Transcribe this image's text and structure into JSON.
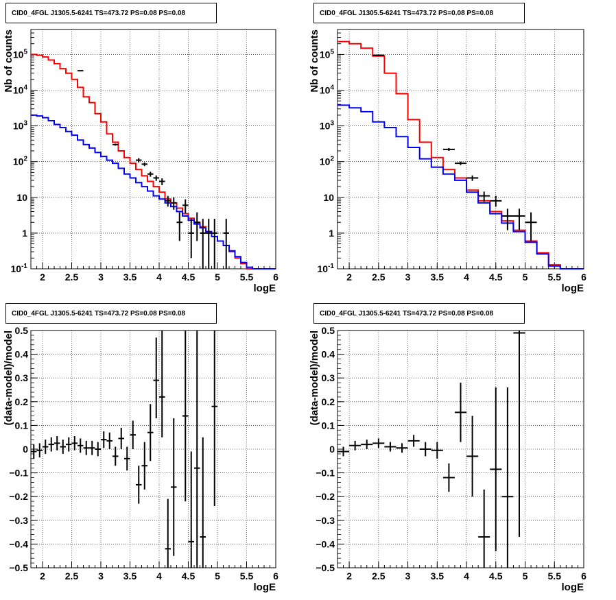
{
  "chart_data": [
    {
      "type": "line",
      "title": "CID0_4FGL J1305.5-6241 TS=473.72 PS=0.08 PS=0.08",
      "xlabel": "logE",
      "ylabel": "Nb of counts",
      "yscale": "log",
      "xlim": [
        1.8,
        6.0
      ],
      "ylim": [
        0.1,
        500000
      ],
      "xticks": [
        "2",
        "2.5",
        "3",
        "3.5",
        "4",
        "4.5",
        "5",
        "5.5",
        "6"
      ],
      "yticks": [
        "10^-1",
        "1",
        "10",
        "10^2",
        "10^3",
        "10^4",
        "10^5"
      ],
      "grid": true,
      "bin_edges": [
        1.8,
        1.9,
        2.0,
        2.1,
        2.2,
        2.3,
        2.4,
        2.5,
        2.6,
        2.7,
        2.8,
        2.9,
        3.0,
        3.1,
        3.2,
        3.3,
        3.4,
        3.5,
        3.6,
        3.7,
        3.8,
        3.9,
        4.0,
        4.1,
        4.2,
        4.3,
        4.4,
        4.5,
        4.6,
        4.7,
        4.8,
        4.9,
        5.0,
        5.1,
        5.2,
        5.3,
        5.4,
        5.5,
        5.6,
        5.7,
        5.8,
        5.9,
        6.0
      ],
      "series": [
        {
          "color": "#ff0000",
          "style": "step",
          "values": [
            100000,
            95000,
            85000,
            70000,
            55000,
            40000,
            30000,
            20000,
            12000,
            6500,
            4500,
            2200,
            1300,
            600,
            350,
            200,
            130,
            90,
            60,
            40,
            28,
            20,
            14,
            9,
            7,
            5,
            3.5,
            2.6,
            2,
            1.5,
            1.1,
            0.8,
            0.6,
            0.45,
            0.3,
            0.2,
            0.14,
            0.1,
            0.1,
            0.1,
            0.1,
            0.1
          ]
        },
        {
          "color": "#0000ff",
          "style": "step",
          "values": [
            2000,
            1900,
            1700,
            1400,
            1100,
            900,
            700,
            550,
            400,
            300,
            240,
            180,
            140,
            110,
            90,
            65,
            45,
            35,
            26,
            20,
            15,
            11,
            9,
            7,
            5.5,
            4,
            3,
            2.3,
            1.8,
            1.4,
            1.1,
            0.8,
            0.6,
            0.45,
            0.32,
            0.22,
            0.15,
            0.11,
            0.1,
            0.1,
            0.1,
            0.1
          ]
        }
      ],
      "points": [
        {
          "x": 2.65,
          "y": 35000,
          "xerr": 0.05,
          "ylo": 34000,
          "yhi": 36000
        },
        {
          "x": 3.25,
          "y": 300,
          "xerr": 0.05,
          "ylo": 280,
          "yhi": 320
        },
        {
          "x": 3.65,
          "y": 110,
          "xerr": 0.05,
          "ylo": 95,
          "yhi": 125
        },
        {
          "x": 3.75,
          "y": 85,
          "xerr": 0.05,
          "ylo": 75,
          "yhi": 95
        },
        {
          "x": 3.85,
          "y": 45,
          "xerr": 0.05,
          "ylo": 38,
          "yhi": 52
        },
        {
          "x": 3.95,
          "y": 35,
          "xerr": 0.05,
          "ylo": 29,
          "yhi": 41
        },
        {
          "x": 4.05,
          "y": 28,
          "xerr": 0.05,
          "ylo": 22,
          "yhi": 34
        },
        {
          "x": 4.15,
          "y": 8,
          "xerr": 0.05,
          "ylo": 5.5,
          "yhi": 11
        },
        {
          "x": 4.25,
          "y": 7,
          "xerr": 0.05,
          "ylo": 4.5,
          "yhi": 10
        },
        {
          "x": 4.35,
          "y": 2,
          "xerr": 0.05,
          "ylo": 0.6,
          "yhi": 3.8
        },
        {
          "x": 4.45,
          "y": 6,
          "xerr": 0.05,
          "ylo": 3.6,
          "yhi": 8.8
        },
        {
          "x": 4.55,
          "y": 1,
          "xerr": 0.05,
          "ylo": 0.2,
          "yhi": 2.5
        },
        {
          "x": 4.65,
          "y": 2,
          "xerr": 0.05,
          "ylo": 0.6,
          "yhi": 3.8
        },
        {
          "x": 4.75,
          "y": 1,
          "xerr": 0.05,
          "ylo": 0.1,
          "yhi": 2.5
        },
        {
          "x": 4.85,
          "y": 1,
          "xerr": 0.05,
          "ylo": 0.1,
          "yhi": 2.5
        },
        {
          "x": 4.95,
          "y": 1,
          "xerr": 0.05,
          "ylo": 0.1,
          "yhi": 2.5
        },
        {
          "x": 5.15,
          "y": 1,
          "xerr": 0.05,
          "ylo": 0.1,
          "yhi": 2.5
        }
      ]
    },
    {
      "type": "line",
      "title": "CID0_4FGL J1305.5-6241 TS=473.72 PS=0.08 PS=0.08",
      "xlabel": "logE",
      "ylabel": "Nb of counts",
      "yscale": "log",
      "xlim": [
        1.8,
        6.0
      ],
      "ylim": [
        0.1,
        500000
      ],
      "xticks": [
        "2",
        "2.5",
        "3",
        "3.5",
        "4",
        "4.5",
        "5",
        "5.5",
        "6"
      ],
      "yticks": [
        "10^-1",
        "1",
        "10",
        "10^2",
        "10^3",
        "10^4",
        "10^5"
      ],
      "grid": true,
      "bin_edges": [
        1.8,
        2.0,
        2.2,
        2.4,
        2.6,
        2.8,
        3.0,
        3.2,
        3.4,
        3.6,
        3.8,
        4.0,
        4.2,
        4.4,
        4.6,
        4.8,
        5.0,
        5.2,
        5.4,
        5.6,
        5.8,
        6.0
      ],
      "series": [
        {
          "color": "#ff0000",
          "style": "step",
          "values": [
            230000,
            200000,
            150000,
            90000,
            30000,
            8000,
            1500,
            350,
            130,
            60,
            35,
            16,
            8,
            4,
            2.2,
            1.2,
            0.6,
            0.28,
            0.13,
            0.1,
            0.1
          ]
        },
        {
          "color": "#0000ff",
          "style": "step",
          "values": [
            3800,
            3200,
            2500,
            1300,
            900,
            500,
            250,
            120,
            70,
            45,
            30,
            14,
            7,
            3.5,
            1.9,
            1.1,
            0.55,
            0.26,
            0.12,
            0.1,
            0.1
          ]
        }
      ],
      "points": [
        {
          "x": 2.5,
          "y": 95000,
          "xerr": 0.1,
          "ylo": 92000,
          "yhi": 98000
        },
        {
          "x": 3.7,
          "y": 220,
          "xerr": 0.1,
          "ylo": 200,
          "yhi": 240
        },
        {
          "x": 3.9,
          "y": 90,
          "xerr": 0.1,
          "ylo": 80,
          "yhi": 100
        },
        {
          "x": 4.1,
          "y": 35,
          "xerr": 0.1,
          "ylo": 29,
          "yhi": 41
        },
        {
          "x": 4.3,
          "y": 11,
          "xerr": 0.1,
          "ylo": 7.5,
          "yhi": 14.5
        },
        {
          "x": 4.5,
          "y": 8,
          "xerr": 0.1,
          "ylo": 5.5,
          "yhi": 11
        },
        {
          "x": 4.7,
          "y": 3,
          "xerr": 0.1,
          "ylo": 1.2,
          "yhi": 4.8
        },
        {
          "x": 4.9,
          "y": 3,
          "xerr": 0.1,
          "ylo": 1.2,
          "yhi": 4.8
        },
        {
          "x": 5.1,
          "y": 2,
          "xerr": 0.1,
          "ylo": 0.6,
          "yhi": 3.8
        }
      ]
    },
    {
      "type": "scatter",
      "title": "CID0_4FGL J1305.5-6241 TS=473.72 PS=0.08 PS=0.08",
      "xlabel": "logE",
      "ylabel": "(data-model)/model",
      "yscale": "linear",
      "xlim": [
        1.8,
        6.0
      ],
      "ylim": [
        -0.5,
        0.5
      ],
      "xticks": [
        "2",
        "2.5",
        "3",
        "3.5",
        "4",
        "4.5",
        "5",
        "5.5",
        "6"
      ],
      "yticks": [
        "-0.5",
        "-0.4",
        "-0.3",
        "-0.2",
        "-0.1",
        "0",
        "0.1",
        "0.2",
        "0.3",
        "0.4",
        "0.5"
      ],
      "grid": true,
      "points": [
        {
          "x": 1.85,
          "y": -0.01,
          "xerr": 0.05,
          "ylo": -0.04,
          "yhi": 0.02
        },
        {
          "x": 1.95,
          "y": -0.005,
          "xerr": 0.05,
          "ylo": -0.035,
          "yhi": 0.025
        },
        {
          "x": 2.05,
          "y": 0.01,
          "xerr": 0.05,
          "ylo": -0.02,
          "yhi": 0.04
        },
        {
          "x": 2.15,
          "y": 0.02,
          "xerr": 0.05,
          "ylo": -0.01,
          "yhi": 0.05
        },
        {
          "x": 2.25,
          "y": 0.025,
          "xerr": 0.05,
          "ylo": -0.005,
          "yhi": 0.055
        },
        {
          "x": 2.35,
          "y": 0.01,
          "xerr": 0.05,
          "ylo": -0.02,
          "yhi": 0.04
        },
        {
          "x": 2.45,
          "y": 0.02,
          "xerr": 0.05,
          "ylo": -0.01,
          "yhi": 0.05
        },
        {
          "x": 2.55,
          "y": 0.025,
          "xerr": 0.05,
          "ylo": -0.005,
          "yhi": 0.055
        },
        {
          "x": 2.65,
          "y": 0.015,
          "xerr": 0.05,
          "ylo": -0.015,
          "yhi": 0.045
        },
        {
          "x": 2.75,
          "y": 0.005,
          "xerr": 0.05,
          "ylo": -0.025,
          "yhi": 0.035
        },
        {
          "x": 2.85,
          "y": 0.005,
          "xerr": 0.05,
          "ylo": -0.025,
          "yhi": 0.035
        },
        {
          "x": 2.95,
          "y": 0.0,
          "xerr": 0.05,
          "ylo": -0.03,
          "yhi": 0.03
        },
        {
          "x": 3.05,
          "y": 0.04,
          "xerr": 0.05,
          "ylo": 0.005,
          "yhi": 0.075
        },
        {
          "x": 3.15,
          "y": 0.035,
          "xerr": 0.05,
          "ylo": 0.0,
          "yhi": 0.07
        },
        {
          "x": 3.25,
          "y": -0.03,
          "xerr": 0.05,
          "ylo": -0.07,
          "yhi": 0.01
        },
        {
          "x": 3.35,
          "y": 0.045,
          "xerr": 0.05,
          "ylo": 0.0,
          "yhi": 0.09
        },
        {
          "x": 3.45,
          "y": -0.04,
          "xerr": 0.05,
          "ylo": -0.09,
          "yhi": 0.01
        },
        {
          "x": 3.55,
          "y": 0.06,
          "xerr": 0.05,
          "ylo": 0.0,
          "yhi": 0.12
        },
        {
          "x": 3.65,
          "y": -0.15,
          "xerr": 0.05,
          "ylo": -0.23,
          "yhi": -0.07
        },
        {
          "x": 3.75,
          "y": -0.07,
          "xerr": 0.05,
          "ylo": -0.17,
          "yhi": 0.03
        },
        {
          "x": 3.85,
          "y": 0.07,
          "xerr": 0.05,
          "ylo": -0.05,
          "yhi": 0.19
        },
        {
          "x": 3.95,
          "y": 0.29,
          "xerr": 0.05,
          "ylo": 0.13,
          "yhi": 0.47
        },
        {
          "x": 4.05,
          "y": 0.22,
          "xerr": 0.05,
          "ylo": 0.05,
          "yhi": 0.5
        },
        {
          "x": 4.15,
          "y": -0.42,
          "xerr": 0.05,
          "ylo": -0.5,
          "yhi": -0.21
        },
        {
          "x": 4.25,
          "y": -0.16,
          "xerr": 0.05,
          "ylo": -0.45,
          "yhi": 0.13
        },
        {
          "x": 4.45,
          "y": 0.14,
          "xerr": 0.05,
          "ylo": -0.22,
          "yhi": 0.5
        },
        {
          "x": 4.55,
          "y": -0.39,
          "xerr": 0.05,
          "ylo": -0.5,
          "yhi": -0.01
        },
        {
          "x": 4.65,
          "y": -0.08,
          "xerr": 0.05,
          "ylo": -0.5,
          "yhi": 0.5
        },
        {
          "x": 4.75,
          "y": -0.37,
          "xerr": 0.05,
          "ylo": -0.5,
          "yhi": 0.05
        },
        {
          "x": 4.95,
          "y": 0.18,
          "xerr": 0.05,
          "ylo": -0.24,
          "yhi": 0.5
        }
      ]
    },
    {
      "type": "scatter",
      "title": "CID0_4FGL J1305.5-6241 TS=473.72 PS=0.08 PS=0.08",
      "xlabel": "logE",
      "ylabel": "(data-model)/model",
      "yscale": "linear",
      "xlim": [
        1.8,
        6.0
      ],
      "ylim": [
        -0.5,
        0.5
      ],
      "xticks": [
        "2",
        "2.5",
        "3",
        "3.5",
        "4",
        "4.5",
        "5",
        "5.5",
        "6"
      ],
      "yticks": [
        "-0.5",
        "-0.4",
        "-0.3",
        "-0.2",
        "-0.1",
        "0",
        "0.1",
        "0.2",
        "0.3",
        "0.4",
        "0.5"
      ],
      "grid": true,
      "points": [
        {
          "x": 1.9,
          "y": -0.01,
          "xerr": 0.1,
          "ylo": -0.03,
          "yhi": 0.01
        },
        {
          "x": 2.1,
          "y": 0.015,
          "xerr": 0.1,
          "ylo": -0.005,
          "yhi": 0.035
        },
        {
          "x": 2.3,
          "y": 0.02,
          "xerr": 0.1,
          "ylo": 0.0,
          "yhi": 0.04
        },
        {
          "x": 2.5,
          "y": 0.025,
          "xerr": 0.1,
          "ylo": 0.005,
          "yhi": 0.045
        },
        {
          "x": 2.7,
          "y": 0.01,
          "xerr": 0.1,
          "ylo": -0.01,
          "yhi": 0.03
        },
        {
          "x": 2.9,
          "y": 0.005,
          "xerr": 0.1,
          "ylo": -0.015,
          "yhi": 0.025
        },
        {
          "x": 3.1,
          "y": 0.035,
          "xerr": 0.1,
          "ylo": 0.01,
          "yhi": 0.06
        },
        {
          "x": 3.3,
          "y": 0.0,
          "xerr": 0.1,
          "ylo": -0.03,
          "yhi": 0.03
        },
        {
          "x": 3.5,
          "y": -0.005,
          "xerr": 0.1,
          "ylo": -0.04,
          "yhi": 0.03
        },
        {
          "x": 3.7,
          "y": -0.12,
          "xerr": 0.1,
          "ylo": -0.18,
          "yhi": -0.06
        },
        {
          "x": 3.9,
          "y": 0.155,
          "xerr": 0.1,
          "ylo": 0.03,
          "yhi": 0.28
        },
        {
          "x": 4.1,
          "y": -0.03,
          "xerr": 0.1,
          "ylo": -0.2,
          "yhi": 0.14
        },
        {
          "x": 4.3,
          "y": -0.37,
          "xerr": 0.1,
          "ylo": -0.5,
          "yhi": -0.17
        },
        {
          "x": 4.5,
          "y": -0.085,
          "xerr": 0.1,
          "ylo": -0.43,
          "yhi": 0.26
        },
        {
          "x": 4.7,
          "y": -0.2,
          "xerr": 0.1,
          "ylo": -0.5,
          "yhi": 0.26
        },
        {
          "x": 4.9,
          "y": 0.49,
          "xerr": 0.1,
          "ylo": -0.37,
          "yhi": 0.5
        }
      ]
    }
  ]
}
